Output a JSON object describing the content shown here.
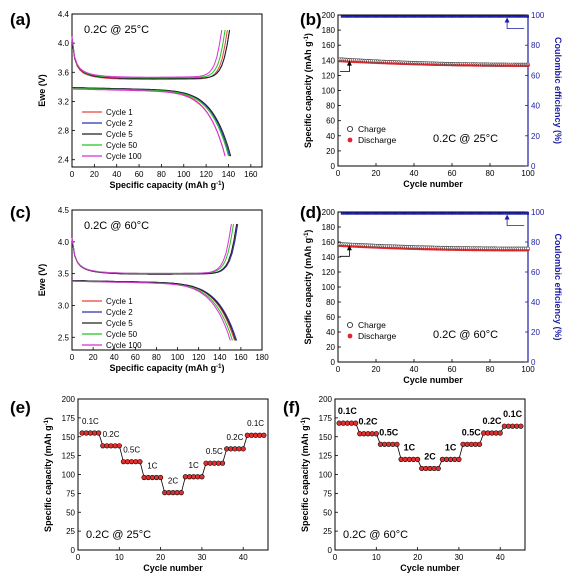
{
  "colors": {
    "cycle1": "#e8413a",
    "cycle2": "#2a2fb3",
    "cycle5": "#222222",
    "cycle50": "#21c321",
    "cycle100": "#d82fd8",
    "charge": "#333333",
    "discharge": "#e0262b",
    "coulombic": "#1c1ca8",
    "rate_fill": "#e03030"
  },
  "chart_data": [
    {
      "id": "a",
      "panel_label": "(a)",
      "type": "line",
      "annotation": "0.2C @ 25°C",
      "xlabel": "Specific capacity (mAh g",
      "xlabel_sup": "-1",
      "xlabel_end": ")",
      "ylabel": "Ewe (V)",
      "xlim": [
        0,
        170
      ],
      "ylim": [
        2.3,
        4.4
      ],
      "xticks": [
        "0",
        "20",
        "40",
        "60",
        "80",
        "100",
        "120",
        "140",
        "160"
      ],
      "yticks": [
        "2.4",
        "2.8",
        "3.2",
        "3.6",
        "4.0",
        "4.4"
      ],
      "legend": [
        "Cycle 1",
        "Cycle 2",
        "Cycle 5",
        "Cycle 50",
        "Cycle 100"
      ],
      "series": [
        {
          "name": "Cycle 1",
          "charge_end": 139,
          "discharge_end": 137,
          "plateau_charge": 3.46,
          "plateau_discharge": 3.38
        },
        {
          "name": "Cycle 2",
          "charge_end": 141,
          "discharge_end": 141,
          "plateau_charge": 3.47,
          "plateau_discharge": 3.39
        },
        {
          "name": "Cycle 5",
          "charge_end": 141,
          "discharge_end": 142,
          "plateau_charge": 3.47,
          "plateau_discharge": 3.39
        },
        {
          "name": "Cycle 50",
          "charge_end": 137,
          "discharge_end": 140,
          "plateau_charge": 3.48,
          "plateau_discharge": 3.38
        },
        {
          "name": "Cycle 100",
          "charge_end": 134,
          "discharge_end": 137,
          "plateau_charge": 3.49,
          "plateau_discharge": 3.37
        }
      ]
    },
    {
      "id": "b",
      "panel_label": "(b)",
      "type": "scatter",
      "annotation": "0.2C @ 25°C",
      "xlabel": "Cycle number",
      "ylabel": "Specific capacity (mAh g",
      "ylabel_sup": "-1",
      "ylabel_end": ")",
      "y2label": "Coulombic efficiency (%)",
      "xlim": [
        0,
        100
      ],
      "ylim": [
        0,
        200
      ],
      "y2lim": [
        0,
        100
      ],
      "xticks": [
        "0",
        "20",
        "40",
        "60",
        "80",
        "100"
      ],
      "yticks": [
        "0",
        "20",
        "40",
        "60",
        "80",
        "100",
        "120",
        "140",
        "160",
        "180",
        "200"
      ],
      "y2ticks": [
        "0",
        "20",
        "40",
        "60",
        "80",
        "100"
      ],
      "legend": [
        "Charge",
        "Discharge"
      ],
      "series": [
        {
          "name": "Charge",
          "start": 141,
          "end": 134
        },
        {
          "name": "Discharge",
          "start": 139,
          "end": 133
        },
        {
          "name": "Coulombic efficiency",
          "value": 99
        }
      ]
    },
    {
      "id": "c",
      "panel_label": "(c)",
      "type": "line",
      "annotation": "0.2C @ 60°C",
      "xlabel": "Specific capacity (mAh g",
      "xlabel_sup": "-1",
      "xlabel_end": ")",
      "ylabel": "Ewe (V)",
      "xlim": [
        0,
        180
      ],
      "ylim": [
        2.3,
        4.5
      ],
      "xticks": [
        "0",
        "20",
        "40",
        "60",
        "80",
        "100",
        "120",
        "140",
        "160",
        "180"
      ],
      "yticks": [
        "2.5",
        "3.0",
        "3.5",
        "4.0",
        "4.5"
      ],
      "legend": [
        "Cycle 1",
        "Cycle 2",
        "Cycle 5",
        "Cycle 50",
        "Cycle 100"
      ],
      "series": [
        {
          "name": "Cycle 1",
          "charge_end": 156,
          "discharge_end": 154,
          "plateau_charge": 3.45,
          "plateau_discharge": 3.39
        },
        {
          "name": "Cycle 2",
          "charge_end": 157,
          "discharge_end": 156,
          "plateau_charge": 3.45,
          "plateau_discharge": 3.39
        },
        {
          "name": "Cycle 5",
          "charge_end": 156,
          "discharge_end": 155,
          "plateau_charge": 3.45,
          "plateau_discharge": 3.39
        },
        {
          "name": "Cycle 50",
          "charge_end": 153,
          "discharge_end": 152,
          "plateau_charge": 3.46,
          "plateau_discharge": 3.38
        },
        {
          "name": "Cycle 100",
          "charge_end": 151,
          "discharge_end": 150,
          "plateau_charge": 3.46,
          "plateau_discharge": 3.38
        }
      ]
    },
    {
      "id": "d",
      "panel_label": "(d)",
      "type": "scatter",
      "annotation": "0.2C @ 60°C",
      "xlabel": "Cycle number",
      "ylabel": "Specific capacity (mAh g",
      "ylabel_sup": "-1",
      "ylabel_end": ")",
      "y2label": "Coulombic efficiency (%)",
      "xlim": [
        0,
        100
      ],
      "ylim": [
        0,
        200
      ],
      "y2lim": [
        0,
        100
      ],
      "xticks": [
        "0",
        "20",
        "40",
        "60",
        "80",
        "100"
      ],
      "yticks": [
        "0",
        "20",
        "40",
        "60",
        "80",
        "100",
        "120",
        "140",
        "160",
        "180",
        "200"
      ],
      "y2ticks": [
        "0",
        "20",
        "40",
        "60",
        "80",
        "100"
      ],
      "legend": [
        "Charge",
        "Discharge"
      ],
      "series": [
        {
          "name": "Charge",
          "start": 157,
          "end": 151
        },
        {
          "name": "Discharge",
          "start": 155,
          "end": 149
        },
        {
          "name": "Coulombic efficiency",
          "value": 99
        }
      ]
    },
    {
      "id": "e",
      "panel_label": "(e)",
      "type": "scatter",
      "annotation": "0.2C @ 25°C",
      "xlabel": "Cycle number",
      "ylabel": "Specific capacity (mAh g",
      "ylabel_sup": "-1",
      "ylabel_end": ")",
      "xlim": [
        0,
        46
      ],
      "ylim": [
        0,
        200
      ],
      "xticks": [
        "0",
        "10",
        "20",
        "30",
        "40"
      ],
      "yticks": [
        "0",
        "25",
        "50",
        "75",
        "100",
        "125",
        "150",
        "175",
        "200"
      ],
      "steps": [
        {
          "rate": "0.1C",
          "from": 1,
          "to": 5,
          "value": 155
        },
        {
          "rate": "0.2C",
          "from": 6,
          "to": 10,
          "value": 138
        },
        {
          "rate": "0.5C",
          "from": 11,
          "to": 15,
          "value": 117
        },
        {
          "rate": "1C",
          "from": 16,
          "to": 20,
          "value": 96
        },
        {
          "rate": "2C",
          "from": 21,
          "to": 25,
          "value": 76
        },
        {
          "rate": "1C",
          "from": 26,
          "to": 30,
          "value": 97
        },
        {
          "rate": "0.5C",
          "from": 31,
          "to": 35,
          "value": 115
        },
        {
          "rate": "0.2C",
          "from": 36,
          "to": 40,
          "value": 134
        },
        {
          "rate": "0.1C",
          "from": 41,
          "to": 45,
          "value": 152
        }
      ]
    },
    {
      "id": "f",
      "panel_label": "(f)",
      "type": "scatter",
      "annotation": "0.2C @ 60°C",
      "xlabel": "Cycle number",
      "ylabel": "Specific capacity (mAh g",
      "ylabel_sup": "-1",
      "ylabel_end": ")",
      "xlim": [
        0,
        46
      ],
      "ylim": [
        0,
        200
      ],
      "xticks": [
        "0",
        "10",
        "20",
        "30",
        "40"
      ],
      "yticks": [
        "0",
        "25",
        "50",
        "75",
        "100",
        "125",
        "150",
        "175",
        "200"
      ],
      "steps": [
        {
          "rate": "0.1C",
          "from": 1,
          "to": 5,
          "value": 168
        },
        {
          "rate": "0.2C",
          "from": 6,
          "to": 10,
          "value": 154
        },
        {
          "rate": "0.5C",
          "from": 11,
          "to": 15,
          "value": 140
        },
        {
          "rate": "1C",
          "from": 16,
          "to": 20,
          "value": 120
        },
        {
          "rate": "2C",
          "from": 21,
          "to": 25,
          "value": 108
        },
        {
          "rate": "1C",
          "from": 26,
          "to": 30,
          "value": 120
        },
        {
          "rate": "0.5C",
          "from": 31,
          "to": 35,
          "value": 140
        },
        {
          "rate": "0.2C",
          "from": 36,
          "to": 40,
          "value": 155
        },
        {
          "rate": "0.1C",
          "from": 41,
          "to": 45,
          "value": 164
        }
      ]
    }
  ]
}
